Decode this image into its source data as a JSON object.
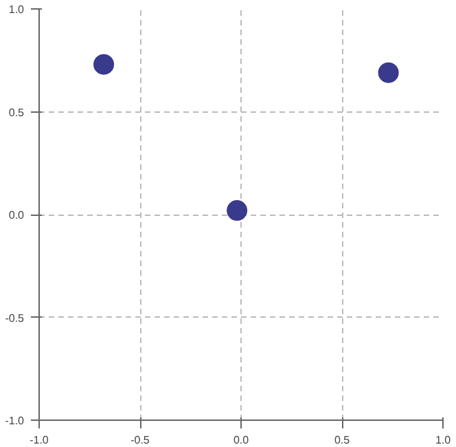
{
  "chart_data": {
    "type": "scatter",
    "x": [
      -0.68,
      -0.02,
      0.73
    ],
    "series": [
      {
        "color": "#393a8c",
        "values": [
          0.73,
          0.02,
          0.69
        ]
      }
    ],
    "xlim": [
      -1,
      1
    ],
    "ylim": [
      -1,
      1
    ],
    "xticks": [
      {
        "value": -1,
        "label": "-1.0"
      },
      {
        "value": -0.5,
        "label": "-0.5"
      },
      {
        "value": 0,
        "label": "0.0"
      },
      {
        "value": 0.5,
        "label": "0.5"
      },
      {
        "value": 1,
        "label": "1.0"
      }
    ],
    "yticks": [
      {
        "value": -1,
        "label": "-1.0"
      },
      {
        "value": -0.5,
        "label": "-0.5"
      },
      {
        "value": 0,
        "label": "0.0"
      },
      {
        "value": 0.5,
        "label": "0.5"
      },
      {
        "value": 1,
        "label": "1.0"
      }
    ],
    "grid": true,
    "marker": "circle"
  }
}
